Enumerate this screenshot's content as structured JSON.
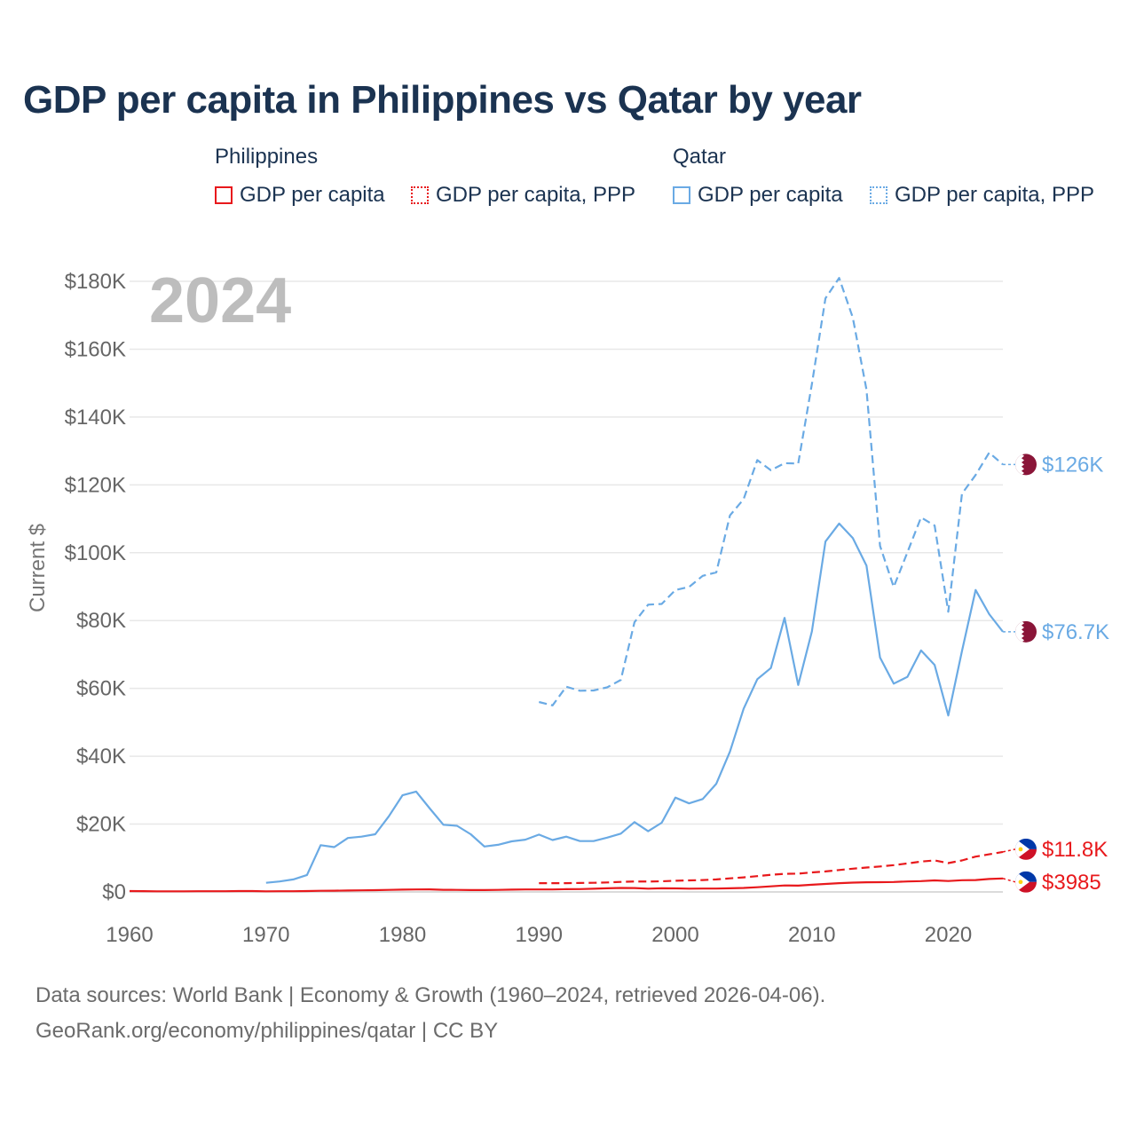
{
  "title": "GDP per capita in Philippines vs Qatar by year",
  "legend": {
    "groups": [
      {
        "name": "Philippines",
        "items": [
          {
            "label": "GDP per capita",
            "style": "solid",
            "color": "#e8191c"
          },
          {
            "label": "GDP per capita, PPP",
            "style": "dotted",
            "color": "#e8191c"
          }
        ]
      },
      {
        "name": "Qatar",
        "items": [
          {
            "label": "GDP per capita",
            "style": "solid",
            "color": "#6aaae4"
          },
          {
            "label": "GDP per capita, PPP",
            "style": "dotted",
            "color": "#6aaae4"
          }
        ]
      }
    ]
  },
  "year_watermark": "2024",
  "end_labels": {
    "qat_ppp": "$126K",
    "qat_gdp": "$76.7K",
    "phl_ppp": "$11.8K",
    "phl_gdp": "$3985"
  },
  "footer": {
    "line1": "Data sources: World Bank | Economy & Growth (1960–2024, retrieved 2026-04-06).",
    "line2": "GeoRank.org/economy/philippines/qatar | CC BY"
  },
  "colors": {
    "philippines": "#e8191c",
    "qatar": "#6aaae4",
    "qatar_flag": "#8a1538",
    "ph_blue": "#0038a8"
  },
  "chart_data": {
    "type": "line",
    "title": "GDP per capita in Philippines vs Qatar by year",
    "xlabel": "",
    "ylabel": "Current $",
    "xlim": [
      1960,
      2024
    ],
    "ylim": [
      0,
      180000
    ],
    "x_ticks": [
      1960,
      1970,
      1980,
      1990,
      2000,
      2010,
      2020
    ],
    "x_tick_labels": [
      "1960",
      "1970",
      "1980",
      "1990",
      "2000",
      "2010",
      "2020"
    ],
    "y_ticks": [
      0,
      20000,
      40000,
      60000,
      80000,
      100000,
      120000,
      140000,
      160000,
      180000
    ],
    "y_tick_labels": [
      "$0",
      "$20K",
      "$40K",
      "$60K",
      "$80K",
      "$100K",
      "$120K",
      "$140K",
      "$160K",
      "$180K"
    ],
    "grid": true,
    "series": [
      {
        "key": "phl_gdp",
        "name": "Philippines GDP per capita",
        "color": "#e8191c",
        "dash": "solid",
        "start": 1960,
        "values": [
          260,
          230,
          180,
          180,
          190,
          200,
          210,
          220,
          250,
          270,
          190,
          200,
          220,
          250,
          340,
          370,
          410,
          470,
          530,
          610,
          690,
          740,
          750,
          640,
          590,
          560,
          540,
          600,
          680,
          720,
          730,
          740,
          820,
          830,
          950,
          1070,
          1180,
          1150,
          980,
          1060,
          1040,
          960,
          990,
          1000,
          1060,
          1180,
          1390,
          1660,
          1920,
          1850,
          2130,
          2360,
          2580,
          2760,
          2840,
          2880,
          2940,
          3080,
          3190,
          3410,
          3220,
          3460,
          3500,
          3810,
          3985
        ]
      },
      {
        "key": "phl_ppp",
        "name": "Philippines GDP per capita, PPP",
        "color": "#e8191c",
        "dash": "dashed",
        "start": 1990,
        "values": [
          2600,
          2600,
          2600,
          2650,
          2700,
          2800,
          2950,
          3100,
          3050,
          3150,
          3300,
          3400,
          3500,
          3700,
          4000,
          4300,
          4650,
          5050,
          5350,
          5400,
          5750,
          6050,
          6450,
          6850,
          7200,
          7500,
          7900,
          8400,
          8950,
          9300,
          8500,
          9300,
          10400,
          11100,
          11800
        ]
      },
      {
        "key": "qat_gdp",
        "name": "Qatar GDP per capita",
        "color": "#6aaae4",
        "dash": "solid",
        "start": 1970,
        "values": [
          2700,
          3100,
          3700,
          5000,
          13800,
          13200,
          15900,
          16300,
          17000,
          22300,
          28500,
          29600,
          24600,
          19800,
          19500,
          17000,
          13400,
          13900,
          14900,
          15400,
          16900,
          15300,
          16300,
          15000,
          15000,
          16000,
          17200,
          20600,
          17900,
          20400,
          27800,
          26100,
          27400,
          31900,
          41400,
          54000,
          62700,
          66000,
          80800,
          61000,
          76800,
          103300,
          108600,
          104300,
          96200,
          69100,
          61400,
          63400,
          71200,
          66900,
          52000,
          71000,
          89000,
          81900,
          76700
        ]
      },
      {
        "key": "qat_ppp",
        "name": "Qatar GDP per capita, PPP",
        "color": "#6aaae4",
        "dash": "dashed",
        "start": 1990,
        "values": [
          56000,
          55000,
          60500,
          59300,
          59400,
          60300,
          62500,
          79500,
          84700,
          84900,
          89000,
          89900,
          93200,
          94200,
          111000,
          115800,
          127300,
          124300,
          126400,
          126300,
          149700,
          175000,
          181000,
          169300,
          148100,
          102000,
          89900,
          100100,
          110400,
          108000,
          82600,
          117400,
          122900,
          129500,
          126000
        ]
      }
    ]
  }
}
